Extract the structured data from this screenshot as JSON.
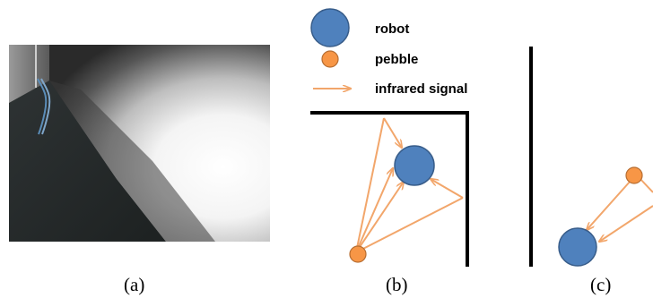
{
  "legend": {
    "robot_label": "robot",
    "pebble_label": "pebble",
    "signal_label": "infrared signal"
  },
  "panels": {
    "a": {
      "caption": "(a)"
    },
    "b": {
      "caption": "(b)"
    },
    "c": {
      "caption": "(c)"
    }
  },
  "colors": {
    "robot_fill": "#4F81BD",
    "robot_stroke": "#385D8A",
    "pebble_fill": "#F79646",
    "pebble_stroke": "#B66D31",
    "signal": "#F2A66B",
    "wall": "#000000"
  }
}
